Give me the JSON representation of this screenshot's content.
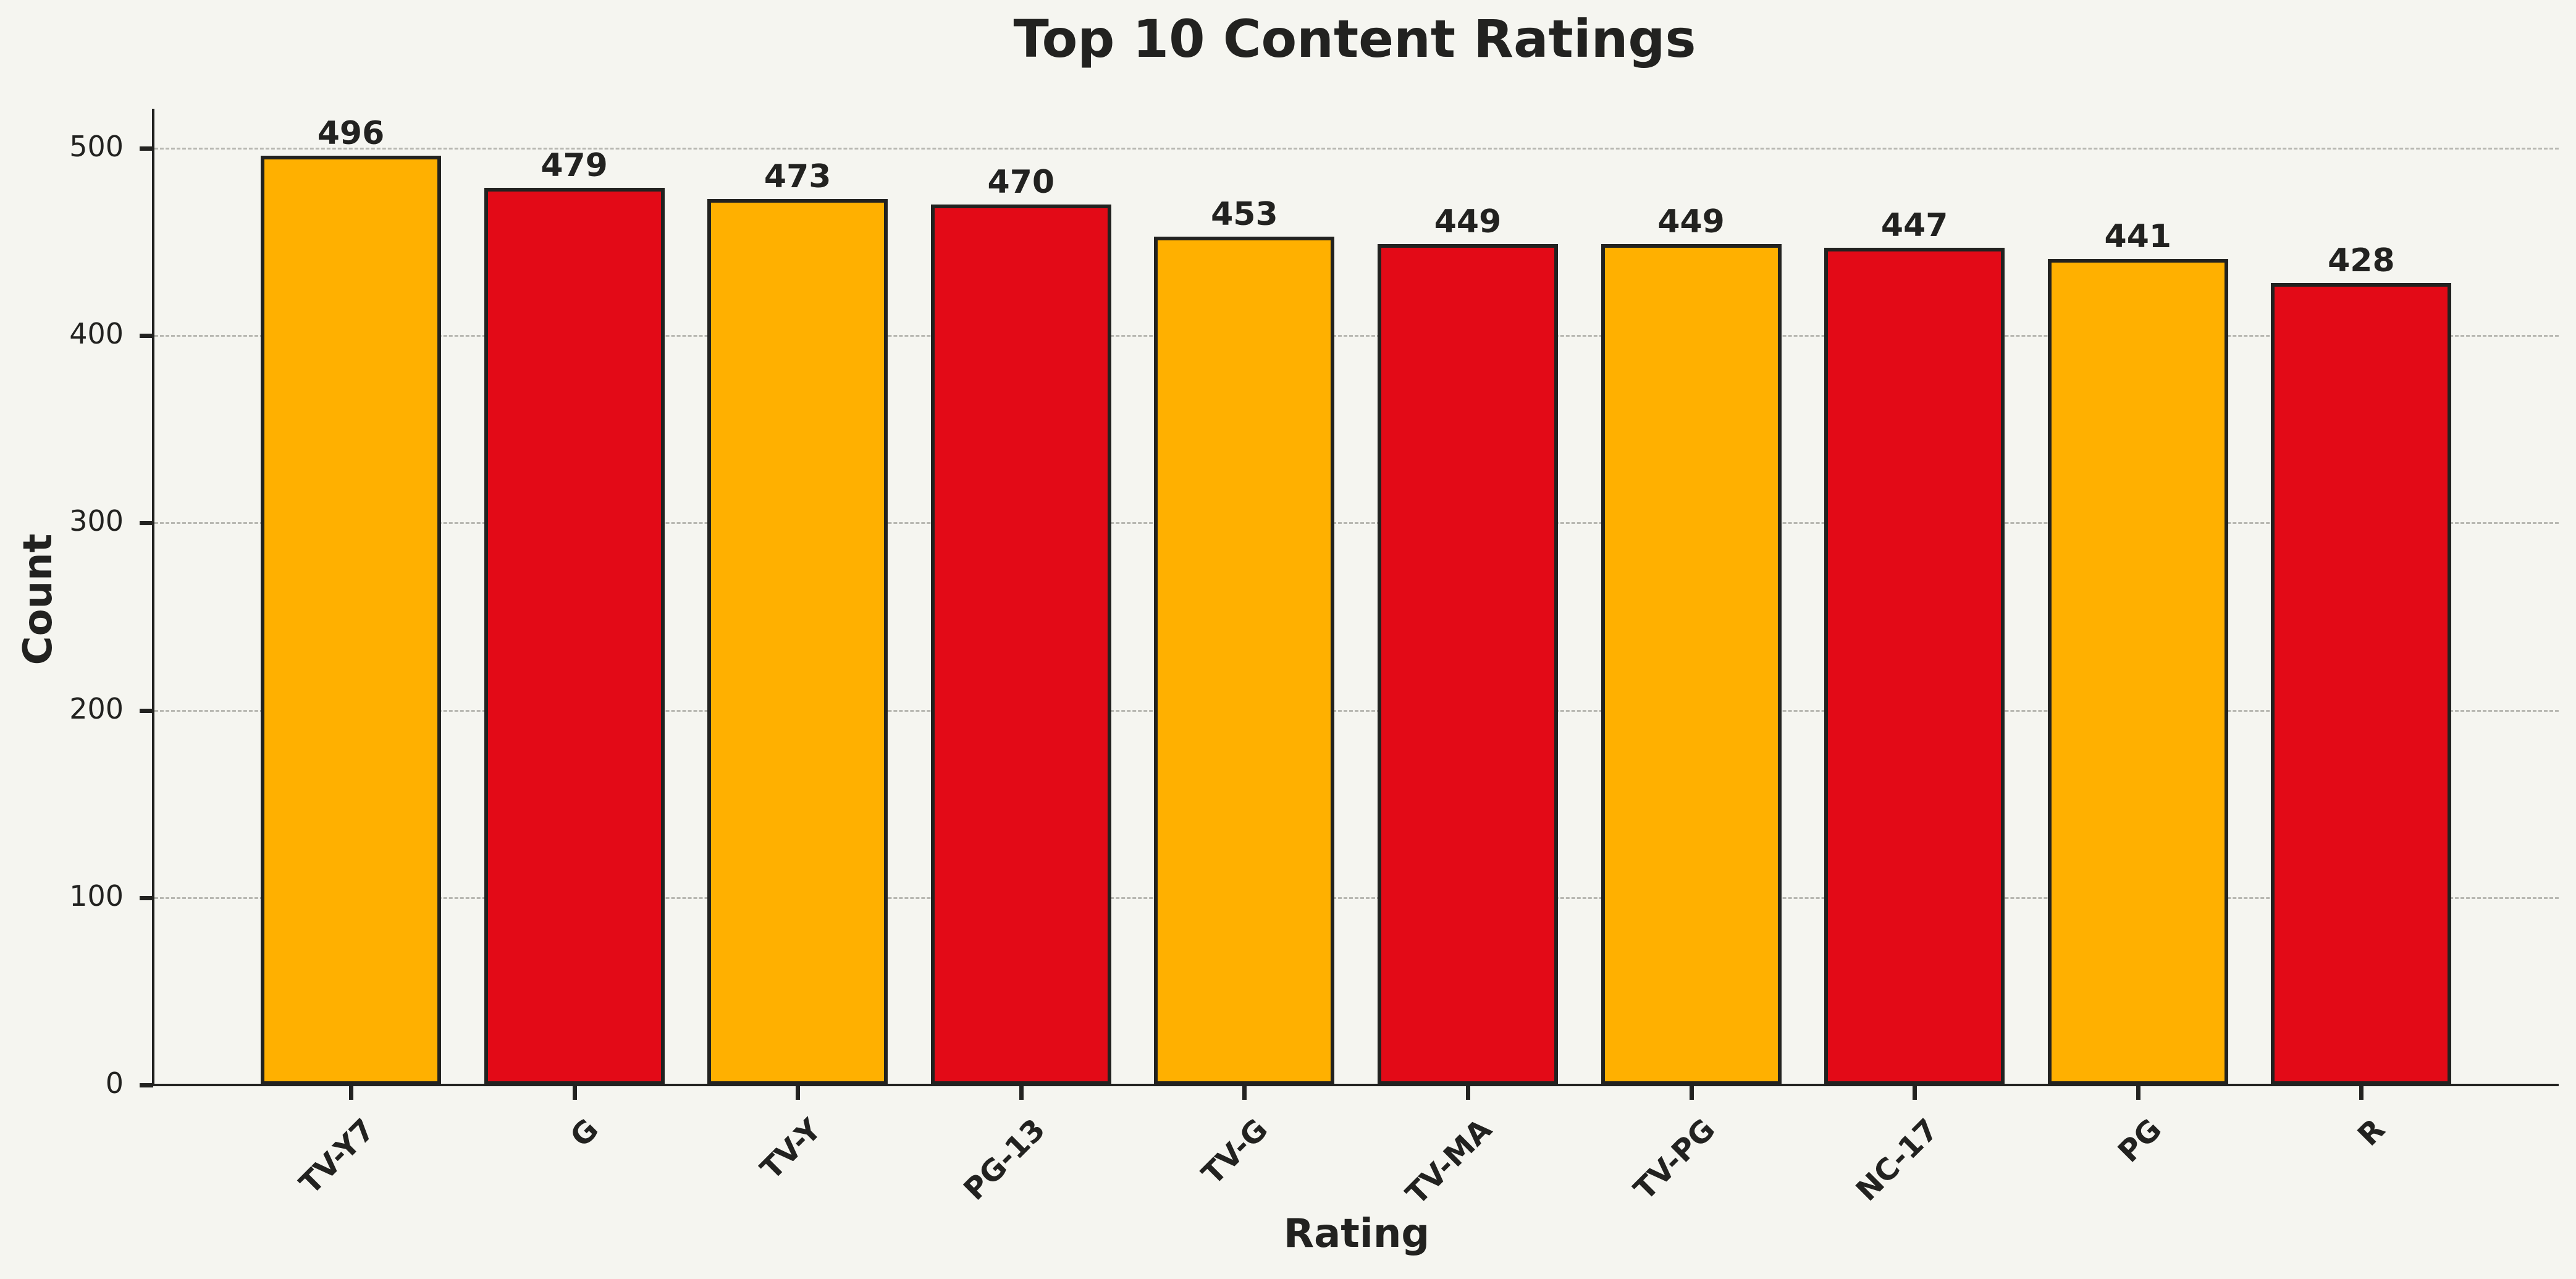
{
  "chart_data": {
    "type": "bar",
    "title": "Top 10 Content Ratings",
    "xlabel": "Rating",
    "ylabel": "Count",
    "categories": [
      "TV-Y7",
      "G",
      "TV-Y",
      "PG-13",
      "TV-G",
      "TV-MA",
      "TV-PG",
      "NC-17",
      "PG",
      "R"
    ],
    "values": [
      496,
      479,
      473,
      470,
      453,
      449,
      449,
      447,
      441,
      428
    ],
    "bar_colors": [
      "#ffb000",
      "#e30a17",
      "#ffb000",
      "#e30a17",
      "#ffb000",
      "#e30a17",
      "#ffb000",
      "#e30a17",
      "#ffb000",
      "#e30a17"
    ],
    "yticks": [
      0,
      100,
      200,
      300,
      400,
      500
    ],
    "ylim": [
      0,
      520
    ],
    "grid": "y-dashed",
    "legend": null,
    "data_labels": true
  },
  "colors": {
    "background": "#f5f5f0",
    "gold": "#ffb000",
    "red": "#e30a17",
    "edge": "#222220",
    "grid": "#b8b8b2"
  }
}
